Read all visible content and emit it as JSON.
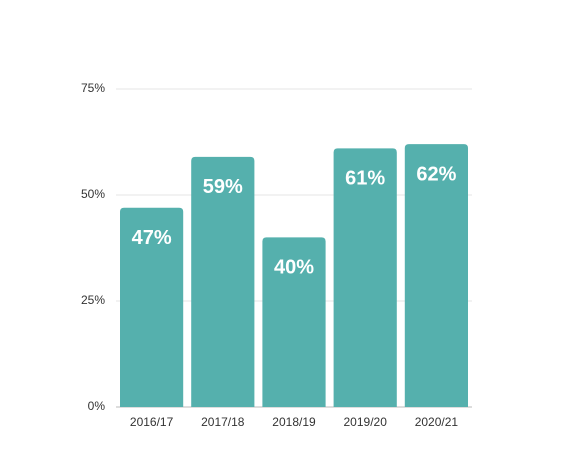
{
  "chart_data": {
    "type": "bar",
    "categories": [
      "2016/17",
      "2017/18",
      "2018/19",
      "2019/20",
      "2020/21"
    ],
    "values": [
      47,
      59,
      40,
      61,
      62
    ],
    "value_labels": [
      "47%",
      "59%",
      "40%",
      "61%",
      "62%"
    ],
    "color": "#55b0ad",
    "ylim": [
      0,
      75
    ],
    "yticks": [
      {
        "value": 0,
        "label": "0%"
      },
      {
        "value": 25,
        "label": "25%"
      },
      {
        "value": 50,
        "label": "50%"
      },
      {
        "value": 75,
        "label": "75%"
      }
    ],
    "grid": true
  }
}
